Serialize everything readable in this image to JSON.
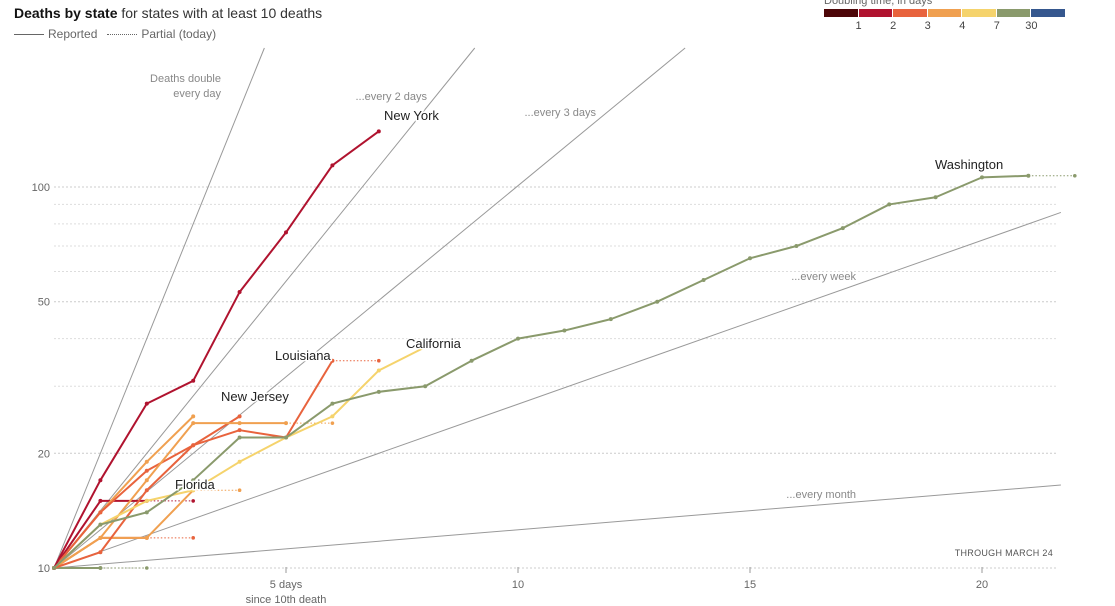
{
  "header": {
    "title_bold": "Deaths by state",
    "title_rest": " for states with at least 10 deaths"
  },
  "legend": {
    "reported": "Reported",
    "partial": "Partial (today)"
  },
  "doubling_legend": {
    "title": "Doubling time, in days",
    "colors": [
      "#4d0608",
      "#b0132f",
      "#e8633d",
      "#f0a050",
      "#f5d36c",
      "#8a9a6c",
      "#35578e"
    ],
    "labels": [
      "1",
      "2",
      "3",
      "4",
      "7",
      "30"
    ]
  },
  "footer": {
    "through": "THROUGH MARCH 24"
  },
  "chart_data": {
    "type": "line",
    "scale": "log",
    "xlabel": "since 10th death",
    "ylim": [
      10,
      200
    ],
    "xlim": [
      0,
      21.7
    ],
    "y_ticks": [
      10,
      20,
      50,
      100
    ],
    "y_tick_labels": [
      "10",
      "20",
      "50",
      "100"
    ],
    "minor_gridlines": [
      30,
      40,
      60,
      70,
      80,
      90
    ],
    "x_ticks": [
      5,
      10,
      15,
      20
    ],
    "x_tick_labels": [
      "5 days",
      "10",
      "15",
      "20"
    ],
    "reference_lines": [
      {
        "label": "Deaths double every day",
        "label_lines": [
          "Deaths double",
          "every day"
        ],
        "doubling_days": 1
      },
      {
        "label": "...every 2 days",
        "doubling_days": 2
      },
      {
        "label": "...every 3 days",
        "doubling_days": 3
      },
      {
        "label": "...every week",
        "doubling_days": 7
      },
      {
        "label": "...every month",
        "doubling_days": 30
      }
    ],
    "series": [
      {
        "name": "Washington",
        "color": "#8a9a6c",
        "labeled": true,
        "x": [
          0,
          1,
          2,
          3,
          4,
          5,
          6,
          7,
          8,
          9,
          10,
          11,
          12,
          13,
          14,
          15,
          16,
          17,
          18,
          19,
          20,
          21
        ],
        "y": [
          10,
          13,
          14,
          17,
          22,
          22,
          27,
          29,
          30,
          35,
          40,
          42,
          45,
          50,
          57,
          65,
          70,
          78,
          90,
          94,
          106,
          107
        ],
        "partial": [
          107,
          107
        ]
      },
      {
        "name": "New York",
        "color": "#b0132f",
        "labeled": true,
        "x": [
          0,
          1,
          2,
          3,
          4,
          5,
          6,
          7
        ],
        "y": [
          10,
          17,
          27,
          31,
          53,
          76,
          114,
          140
        ]
      },
      {
        "name": "California",
        "color": "#f5d36c",
        "labeled": true,
        "x": [
          0,
          1,
          2,
          3,
          4,
          5,
          6,
          7,
          8
        ],
        "y": [
          10,
          13,
          15,
          16,
          19,
          22,
          25,
          33,
          38
        ]
      },
      {
        "name": "Louisiana",
        "color": "#e8633d",
        "labeled": true,
        "x": [
          0,
          1,
          2,
          3,
          4,
          5,
          6
        ],
        "y": [
          10,
          11,
          16,
          21,
          23,
          22,
          35
        ],
        "partial": [
          35,
          35
        ]
      },
      {
        "name": "New Jersey",
        "color": "#f0a050",
        "labeled": true,
        "x": [
          0,
          1,
          2,
          3,
          4,
          5
        ],
        "y": [
          10,
          12,
          17,
          24,
          24,
          24
        ],
        "partial": [
          24,
          24
        ]
      },
      {
        "name": "",
        "color": "#e8633d",
        "labeled": false,
        "x": [
          0,
          1,
          2,
          3,
          4
        ],
        "y": [
          10,
          14,
          18,
          21,
          25
        ]
      },
      {
        "name": "",
        "color": "#f0a050",
        "labeled": false,
        "x": [
          0,
          1,
          2,
          3
        ],
        "y": [
          10,
          14,
          19,
          25
        ]
      },
      {
        "name": "Florida",
        "color": "#f0a050",
        "labeled": true,
        "x": [
          0,
          1,
          2,
          3
        ],
        "y": [
          10,
          12,
          12,
          16
        ],
        "partial": [
          16,
          16
        ]
      },
      {
        "name": "",
        "color": "#b0132f",
        "labeled": false,
        "x": [
          0,
          1,
          2
        ],
        "y": [
          10,
          15,
          15
        ],
        "partial": [
          15,
          15
        ]
      },
      {
        "name": "",
        "color": "#e8633d",
        "labeled": false,
        "x": [
          0,
          1,
          2
        ],
        "y": [
          10,
          12,
          12
        ],
        "partial": [
          12,
          12
        ]
      },
      {
        "name": "",
        "color": "#8a9a6c",
        "labeled": false,
        "x": [
          0,
          1
        ],
        "y": [
          10,
          10
        ],
        "partial": [
          10,
          10
        ]
      }
    ]
  }
}
